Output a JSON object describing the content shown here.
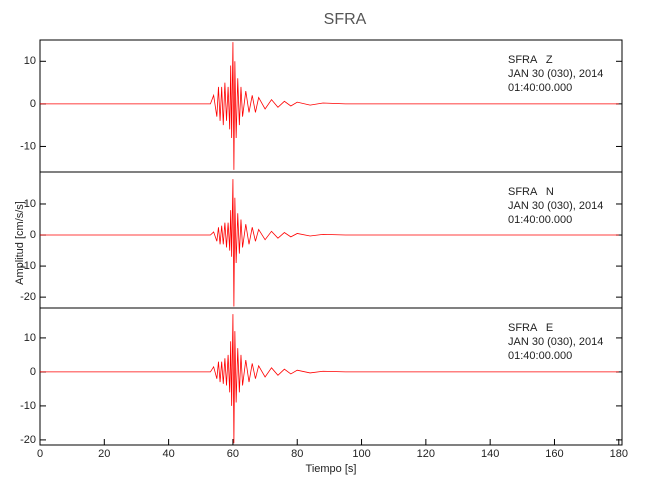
{
  "chart_data": [
    {
      "type": "line",
      "title": "SFRA",
      "annotations": [
        "SFRA   Z",
        "JAN 30 (030), 2014",
        "01:40:00.000"
      ],
      "x": [
        0,
        53,
        54,
        55,
        55.5,
        56,
        56.5,
        57,
        57.5,
        58,
        58.5,
        59,
        59.3,
        59.6,
        60,
        60.3,
        60.6,
        61,
        61.5,
        62,
        62.5,
        63,
        64,
        65,
        66,
        67,
        68,
        70,
        72,
        74,
        76,
        78,
        80,
        84,
        88,
        95,
        180
      ],
      "series": [
        {
          "name": "SFRA Z",
          "color": "#ff0000",
          "values": [
            0,
            0,
            2,
            -3,
            4,
            -4,
            4,
            -5,
            5,
            -4,
            4,
            -6,
            9,
            -8,
            14.5,
            -15.5,
            10,
            -8,
            6,
            -5,
            4,
            -3,
            3,
            -2,
            2,
            -2,
            1.5,
            -1.2,
            1,
            -0.8,
            0.6,
            -0.5,
            0.4,
            -0.3,
            0.2,
            0,
            0
          ]
        }
      ],
      "xlim": [
        0,
        181
      ],
      "ylim": [
        -16,
        15
      ],
      "yticks": [
        -10,
        0,
        10
      ]
    },
    {
      "type": "line",
      "ylabel": "Amplitud [cm/s/s]",
      "annotations": [
        "SFRA   N",
        "JAN 30 (030), 2014",
        "01:40:00.000"
      ],
      "x": [
        0,
        53,
        54,
        55,
        55.5,
        56,
        56.5,
        57,
        57.5,
        58,
        58.5,
        59,
        59.3,
        59.6,
        60,
        60.3,
        60.6,
        61,
        61.5,
        62,
        62.5,
        63,
        64,
        65,
        66,
        67,
        68,
        70,
        72,
        74,
        76,
        78,
        80,
        84,
        88,
        95,
        180
      ],
      "series": [
        {
          "name": "SFRA N",
          "color": "#ff0000",
          "values": [
            0,
            0,
            1,
            -2,
            2.5,
            -3,
            3,
            -3,
            4,
            -4,
            4,
            -5,
            8,
            -7,
            18,
            -23,
            12,
            -9,
            7,
            -6,
            5,
            -4,
            3.5,
            -3,
            2.5,
            -2,
            1.8,
            -1.5,
            1.2,
            -1,
            0.8,
            -0.6,
            0.5,
            -0.3,
            0.2,
            0,
            0
          ]
        }
      ],
      "xlim": [
        0,
        181
      ],
      "ylim": [
        -23.5,
        20.3
      ],
      "yticks": [
        -20,
        -10,
        0,
        10
      ]
    },
    {
      "type": "line",
      "xlabel": "Tiempo [s]",
      "annotations": [
        "SFRA   E",
        "JAN 30 (030), 2014",
        "01:40:00.000"
      ],
      "x": [
        0,
        53,
        54,
        55,
        55.5,
        56,
        56.5,
        57,
        57.5,
        58,
        58.5,
        59,
        59.3,
        59.6,
        60,
        60.3,
        60.6,
        61,
        61.5,
        62,
        62.5,
        63,
        64,
        65,
        66,
        67,
        68,
        70,
        72,
        74,
        76,
        78,
        80,
        84,
        88,
        95,
        180
      ],
      "series": [
        {
          "name": "SFRA E",
          "color": "#ff0000",
          "values": [
            0,
            0,
            1.5,
            -2,
            3,
            -3,
            3,
            -3.5,
            4,
            -4,
            5,
            -6,
            9,
            -10,
            17,
            -21,
            12,
            -9,
            7,
            -6,
            5,
            -4,
            3.5,
            -3,
            2.5,
            -2,
            1.8,
            -1.5,
            1.2,
            -1,
            0.8,
            -0.6,
            0.5,
            -0.3,
            0.2,
            0,
            0
          ]
        }
      ],
      "xlim": [
        0,
        181
      ],
      "ylim": [
        -21.5,
        18.8
      ],
      "yticks": [
        -20,
        -10,
        0,
        10
      ],
      "xticks": [
        0,
        20,
        40,
        60,
        80,
        100,
        120,
        140,
        160,
        180
      ]
    }
  ]
}
